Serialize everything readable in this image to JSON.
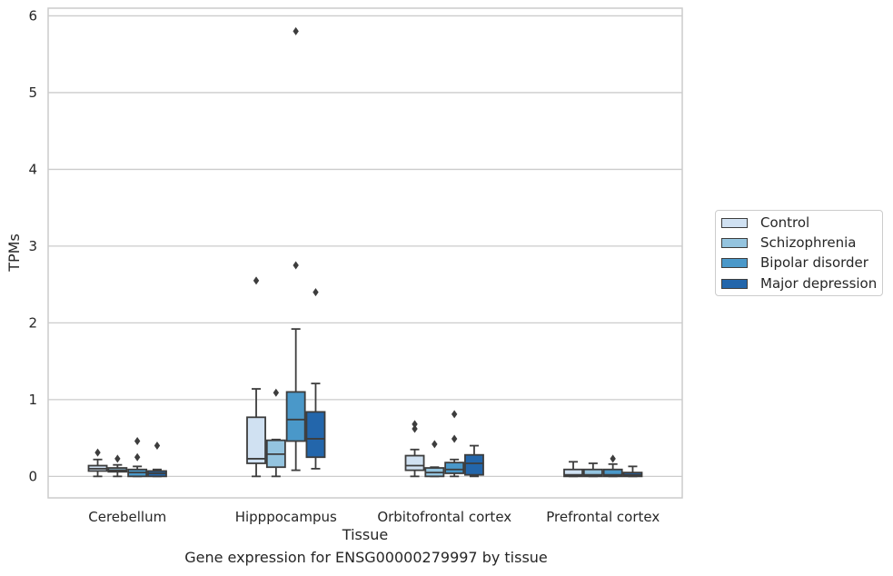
{
  "chart_data": {
    "type": "box",
    "title": "",
    "caption": "Gene expression for ENSG00000279997 by tissue",
    "xlabel": "Tissue",
    "ylabel": "TPMs",
    "ylim": [
      -0.28,
      6.1
    ],
    "yticks": [
      0,
      1,
      2,
      3,
      4,
      5,
      6
    ],
    "grid": true,
    "legend_position": "right",
    "categories": [
      "Cerebellum",
      "Hipppocampus",
      "Orbitofrontal cortex",
      "Prefrontal cortex"
    ],
    "series": [
      {
        "name": "Control",
        "color": "#d0e1f2",
        "boxes": [
          {
            "min": 0.0,
            "q1": 0.07,
            "median": 0.1,
            "q3": 0.14,
            "max": 0.22,
            "outliers": [
              0.31
            ]
          },
          {
            "min": 0.0,
            "q1": 0.17,
            "median": 0.23,
            "q3": 0.77,
            "max": 1.14,
            "outliers": [
              2.55
            ]
          },
          {
            "min": 0.0,
            "q1": 0.08,
            "median": 0.14,
            "q3": 0.27,
            "max": 0.35,
            "outliers": [
              0.62,
              0.68
            ]
          },
          {
            "min": 0.0,
            "q1": 0.0,
            "median": 0.02,
            "q3": 0.09,
            "max": 0.19,
            "outliers": []
          }
        ]
      },
      {
        "name": "Schizophrenia",
        "color": "#94c4df",
        "boxes": [
          {
            "min": 0.0,
            "q1": 0.06,
            "median": 0.08,
            "q3": 0.11,
            "max": 0.15,
            "outliers": [
              0.23
            ]
          },
          {
            "min": 0.0,
            "q1": 0.12,
            "median": 0.29,
            "q3": 0.47,
            "max": 0.48,
            "outliers": [
              1.09
            ]
          },
          {
            "min": 0.0,
            "q1": 0.0,
            "median": 0.05,
            "q3": 0.11,
            "max": 0.12,
            "outliers": [
              0.42
            ]
          },
          {
            "min": 0.0,
            "q1": 0.0,
            "median": 0.02,
            "q3": 0.09,
            "max": 0.17,
            "outliers": []
          }
        ]
      },
      {
        "name": "Bipolar disorder",
        "color": "#4a98c9",
        "boxes": [
          {
            "min": 0.0,
            "q1": 0.0,
            "median": 0.05,
            "q3": 0.09,
            "max": 0.13,
            "outliers": [
              0.25,
              0.46
            ]
          },
          {
            "min": 0.08,
            "q1": 0.46,
            "median": 0.74,
            "q3": 1.1,
            "max": 1.92,
            "outliers": [
              2.75,
              5.8
            ]
          },
          {
            "min": 0.0,
            "q1": 0.04,
            "median": 0.09,
            "q3": 0.18,
            "max": 0.22,
            "outliers": [
              0.49,
              0.81
            ]
          },
          {
            "min": 0.0,
            "q1": 0.0,
            "median": 0.02,
            "q3": 0.09,
            "max": 0.16,
            "outliers": [
              0.23
            ]
          }
        ]
      },
      {
        "name": "Major depression",
        "color": "#2366ab",
        "boxes": [
          {
            "min": 0.0,
            "q1": 0.0,
            "median": 0.04,
            "q3": 0.07,
            "max": 0.09,
            "outliers": [
              0.4
            ]
          },
          {
            "min": 0.1,
            "q1": 0.25,
            "median": 0.49,
            "q3": 0.84,
            "max": 1.21,
            "outliers": [
              2.4
            ]
          },
          {
            "min": 0.0,
            "q1": 0.02,
            "median": 0.17,
            "q3": 0.28,
            "max": 0.4,
            "outliers": []
          },
          {
            "min": 0.0,
            "q1": 0.0,
            "median": 0.02,
            "q3": 0.05,
            "max": 0.13,
            "outliers": []
          }
        ]
      }
    ]
  }
}
